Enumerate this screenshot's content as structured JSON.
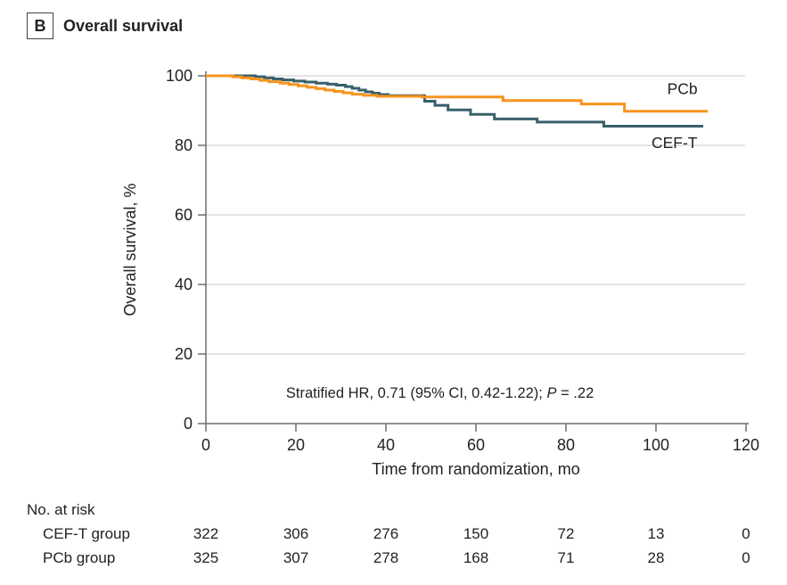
{
  "panel": {
    "label": "B",
    "title": "Overall survival"
  },
  "chart_data": {
    "type": "line",
    "subtype": "kaplan-meier-step",
    "title": "Overall survival",
    "xlabel": "Time from randomization, mo",
    "ylabel": "Overall survival, %",
    "xlim": [
      0,
      120
    ],
    "ylim": [
      0,
      100
    ],
    "xticks": [
      0,
      20,
      40,
      60,
      80,
      100,
      120
    ],
    "yticks": [
      0,
      20,
      40,
      60,
      80,
      100
    ],
    "grid": "horizontal-gridlines-on",
    "legend_position": "labels-at-line-ends",
    "annotation": {
      "text1": "Stratified HR, 0.71 (95% CI, 0.42-1.22); ",
      "p_symbol": "P",
      "text2": " = .22",
      "at": {
        "t": 52,
        "p": 7.5
      }
    },
    "series": [
      {
        "name": "CEF-T",
        "color": "#38606B",
        "label_at": {
          "t": 99,
          "p": 79.2
        },
        "steps": [
          [
            0,
            100
          ],
          [
            11,
            99.7
          ],
          [
            13,
            99.4
          ],
          [
            15,
            99.1
          ],
          [
            17,
            98.8
          ],
          [
            19.5,
            98.5
          ],
          [
            22,
            98.2
          ],
          [
            24.5,
            97.9
          ],
          [
            27,
            97.6
          ],
          [
            29,
            97.3
          ],
          [
            31,
            96.9
          ],
          [
            32.5,
            96.4
          ],
          [
            34,
            95.9
          ],
          [
            35.5,
            95.4
          ],
          [
            37,
            95.0
          ],
          [
            38.5,
            94.6
          ],
          [
            40.5,
            94.3
          ],
          [
            48.6,
            92.7
          ],
          [
            50.9,
            91.5
          ],
          [
            53.8,
            90.2
          ],
          [
            58.8,
            88.9
          ],
          [
            64.1,
            87.6
          ],
          [
            73.6,
            86.7
          ],
          [
            88.4,
            85.5
          ],
          [
            110.5,
            85.5
          ]
        ]
      },
      {
        "name": "PCb",
        "color": "#F7941E",
        "label_at": {
          "t": 102.5,
          "p": 94.8
        },
        "steps": [
          [
            0,
            100
          ],
          [
            6,
            99.7
          ],
          [
            8,
            99.4
          ],
          [
            10,
            99.1
          ],
          [
            12,
            98.7
          ],
          [
            14,
            98.3
          ],
          [
            16.5,
            97.9
          ],
          [
            18.5,
            97.5
          ],
          [
            20.5,
            97.1
          ],
          [
            22.5,
            96.7
          ],
          [
            24.5,
            96.3
          ],
          [
            26.5,
            95.9
          ],
          [
            28.5,
            95.5
          ],
          [
            30.5,
            95.1
          ],
          [
            32.5,
            94.7
          ],
          [
            35,
            94.4
          ],
          [
            38,
            94.1
          ],
          [
            48,
            93.9
          ],
          [
            66,
            92.9
          ],
          [
            83.4,
            91.9
          ],
          [
            93,
            89.8
          ],
          [
            111.5,
            89.8
          ]
        ]
      }
    ]
  },
  "risk_table": {
    "title": "No. at risk",
    "times": [
      0,
      20,
      40,
      60,
      80,
      100,
      120
    ],
    "rows": [
      {
        "label": "CEF-T group",
        "values": [
          "322",
          "306",
          "276",
          "150",
          "72",
          "13",
          "0"
        ]
      },
      {
        "label": "PCb group",
        "values": [
          "325",
          "307",
          "278",
          "168",
          "71",
          "28",
          "0"
        ]
      }
    ]
  },
  "colors": {
    "pcb_line": "#F7941E",
    "ceft_line": "#38606B",
    "gridline": "#DCDCDC",
    "axis": "#6E6E6E",
    "text": "#222222",
    "background": "#FFFFFF"
  }
}
